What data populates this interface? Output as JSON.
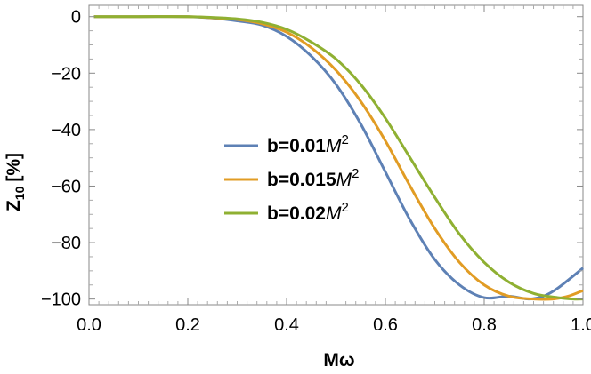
{
  "chart_data": {
    "type": "line",
    "xlabel": "Mω",
    "ylabel_main": "Z",
    "ylabel_sub": "10",
    "ylabel_unit": "[%]",
    "xlim": [
      0,
      1.0
    ],
    "ylim": [
      -102,
      4
    ],
    "x_ticks": [
      0.0,
      0.2,
      0.4,
      0.6,
      0.8,
      1.0
    ],
    "x_tick_labels": [
      "0.0",
      "0.2",
      "0.4",
      "0.6",
      "0.8",
      "1.0"
    ],
    "y_ticks": [
      0,
      -20,
      -40,
      -60,
      -80,
      -100
    ],
    "y_tick_labels": [
      "0",
      "−20",
      "−40",
      "−60",
      "−80",
      "−100"
    ],
    "grid": false,
    "legend_placement": "center",
    "series": [
      {
        "name": "b=0.01M²",
        "label_prefix": "b=0.01",
        "label_var": "M",
        "label_exp": "2",
        "color": "#5E81B5",
        "x": [
          0.01,
          0.1,
          0.2,
          0.25,
          0.3,
          0.35,
          0.4,
          0.45,
          0.5,
          0.55,
          0.6,
          0.65,
          0.7,
          0.75,
          0.8,
          0.85,
          0.89,
          0.92,
          0.95,
          1.0
        ],
        "y": [
          0,
          0,
          0,
          -0.5,
          -1.5,
          -3,
          -7,
          -14,
          -24,
          -38,
          -55,
          -72,
          -86,
          -95,
          -99.5,
          -99,
          -100,
          -99,
          -96,
          -89
        ]
      },
      {
        "name": "b=0.015M²",
        "label_prefix": "b=0.015",
        "label_var": "M",
        "label_exp": "2",
        "color": "#E19C24",
        "x": [
          0.01,
          0.1,
          0.2,
          0.25,
          0.3,
          0.35,
          0.4,
          0.45,
          0.5,
          0.55,
          0.6,
          0.65,
          0.7,
          0.75,
          0.8,
          0.85,
          0.9,
          0.94,
          0.97,
          1.0
        ],
        "y": [
          0,
          0,
          0,
          -0.4,
          -1,
          -2.5,
          -5.5,
          -11,
          -19,
          -30,
          -44,
          -60,
          -75,
          -87,
          -95,
          -99,
          -100,
          -100,
          -99,
          -97
        ]
      },
      {
        "name": "b=0.02M²",
        "label_prefix": "b=0.02",
        "label_var": "M",
        "label_exp": "2",
        "color": "#8FB032",
        "x": [
          0.01,
          0.1,
          0.2,
          0.25,
          0.3,
          0.35,
          0.4,
          0.45,
          0.5,
          0.55,
          0.6,
          0.65,
          0.7,
          0.75,
          0.8,
          0.85,
          0.9,
          0.95,
          0.98,
          1.0
        ],
        "y": [
          0,
          0,
          0,
          -0.3,
          -0.8,
          -2,
          -4.5,
          -9,
          -15,
          -24,
          -36,
          -50,
          -64,
          -77,
          -87,
          -94,
          -98,
          -99.5,
          -100,
          -100
        ]
      }
    ]
  }
}
